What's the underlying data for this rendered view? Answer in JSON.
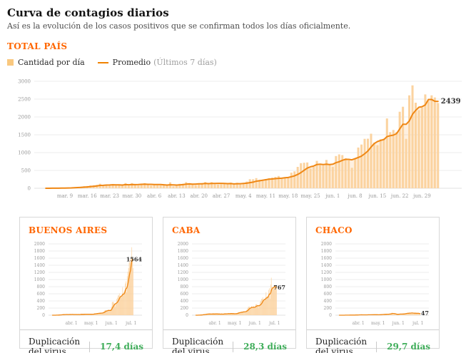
{
  "page": {
    "title": "Curva de contagios diarios",
    "subtitle": "Así es la evolución de los casos positivos que se confirman todos los días oficialmente."
  },
  "section": {
    "label": "TOTAL PAÍS"
  },
  "legend": {
    "bars_label": "Cantidad por día",
    "line_label": "Promedio",
    "line_note": "(Últimos 7 días)"
  },
  "colors": {
    "accent_orange": "#ff6600",
    "bar_fill": "#fbd3a0",
    "line_orange": "#ef8714",
    "area_fill": "rgba(246,160,60,0.16)",
    "grid": "#ececec",
    "axis_text": "#999999",
    "end_label": "#333333",
    "green": "#3fae5a"
  },
  "cards": [
    {
      "title": "BUENOS AIRES",
      "dup_label": "Duplicación del virus",
      "dup_value": "17,4 días"
    },
    {
      "title": "CABA",
      "dup_label": "Duplicación del virus",
      "dup_value": "28,3 días"
    },
    {
      "title": "CHACO",
      "dup_label": "Duplicación del virus",
      "dup_value": "29,7 días"
    }
  ],
  "chart_data": [
    {
      "type": "bar",
      "name": "total-pais",
      "overlay": "línea de promedio móvil de 7 días",
      "ylim": [
        0,
        3000
      ],
      "yticks": [
        0,
        500,
        1000,
        1500,
        2000,
        2500,
        3000
      ],
      "xticks": [
        {
          "label": "mar. 9",
          "i": 6
        },
        {
          "label": "mar. 16",
          "i": 13
        },
        {
          "label": "mar. 23",
          "i": 20
        },
        {
          "label": "mar. 30",
          "i": 27
        },
        {
          "label": "abr. 6",
          "i": 34
        },
        {
          "label": "abr. 13",
          "i": 41
        },
        {
          "label": "abr. 20",
          "i": 48
        },
        {
          "label": "abr. 27",
          "i": 55
        },
        {
          "label": "may. 4",
          "i": 62
        },
        {
          "label": "may. 11",
          "i": 69
        },
        {
          "label": "may. 18",
          "i": 76
        },
        {
          "label": "may. 25",
          "i": 83
        },
        {
          "label": "jun. 1",
          "i": 90
        },
        {
          "label": "jun. 8",
          "i": 97
        },
        {
          "label": "jun. 15",
          "i": 104
        },
        {
          "label": "jun. 22",
          "i": 111
        },
        {
          "label": "jun. 29",
          "i": 118
        }
      ],
      "end_label": "2439",
      "values": [
        1,
        1,
        2,
        2,
        8,
        9,
        12,
        19,
        21,
        31,
        34,
        45,
        56,
        65,
        79,
        87,
        97,
        128,
        67,
        102,
        86,
        117,
        74,
        87,
        101,
        146,
        75,
        146,
        88,
        79,
        132,
        145,
        103,
        74,
        103,
        87,
        80,
        98,
        81,
        167,
        53,
        69,
        124,
        128,
        172,
        143,
        102,
        87,
        113,
        144,
        173,
        147,
        172,
        111,
        105,
        111,
        124,
        143,
        158,
        104,
        154,
        103,
        146,
        188,
        255,
        251,
        284,
        240,
        206,
        258,
        285,
        300,
        318,
        345,
        263,
        299,
        303,
        438,
        474,
        600,
        704,
        717,
        723,
        552,
        600,
        769,
        649,
        637,
        795,
        667,
        602,
        904,
        949,
        931,
        840,
        783,
        574,
        826,
        1141,
        1226,
        1386,
        1391,
        1531,
        1282,
        1208,
        1374,
        1393,
        1958,
        1575,
        1634,
        1581,
        2146,
        2285,
        1386,
        2606,
        2886,
        2401,
        2189,
        2262,
        2632,
        2449,
        2606,
        2545,
        2390
      ]
    },
    {
      "type": "bar",
      "name": "buenos-aires",
      "overlay": "línea de promedio móvil de 7 días",
      "ylim": [
        0,
        2000
      ],
      "yticks": [
        0,
        200,
        400,
        600,
        800,
        1000,
        1200,
        1400,
        1600,
        1800,
        2000
      ],
      "xticks": [
        {
          "label": "abr. 1",
          "i": 29
        },
        {
          "label": "may. 1",
          "i": 59
        },
        {
          "label": "jun. 1",
          "i": 90
        },
        {
          "label": "jul. 1",
          "i": 120
        }
      ],
      "end_label": "1564",
      "values": [
        0,
        0,
        1,
        1,
        2,
        2,
        3,
        4,
        5,
        8,
        9,
        11,
        12,
        14,
        16,
        18,
        20,
        24,
        15,
        20,
        18,
        22,
        16,
        19,
        21,
        28,
        16,
        26,
        18,
        17,
        24,
        26,
        20,
        15,
        20,
        18,
        17,
        21,
        18,
        30,
        12,
        15,
        26,
        28,
        35,
        30,
        22,
        19,
        24,
        30,
        36,
        31,
        36,
        24,
        22,
        24,
        27,
        31,
        34,
        23,
        33,
        22,
        31,
        40,
        52,
        50,
        56,
        48,
        42,
        52,
        57,
        60,
        64,
        69,
        53,
        60,
        61,
        88,
        95,
        120,
        141,
        143,
        145,
        110,
        120,
        154,
        130,
        127,
        159,
        133,
        240,
        362,
        380,
        372,
        336,
        314,
        230,
        330,
        456,
        490,
        554,
        556,
        612,
        512,
        483,
        550,
        557,
        783,
        630,
        654,
        700,
        890,
        950,
        640,
        1090,
        1220,
        1320,
        1480,
        1560,
        1490,
        1640,
        1905,
        1553,
        1320
      ]
    },
    {
      "type": "bar",
      "name": "caba",
      "overlay": "línea de promedio móvil de 7 días",
      "ylim": [
        0,
        2000
      ],
      "yticks": [
        0,
        200,
        400,
        600,
        800,
        1000,
        1200,
        1400,
        1600,
        1800,
        2000
      ],
      "xticks": [
        {
          "label": "abr. 1",
          "i": 29
        },
        {
          "label": "may. 1",
          "i": 59
        },
        {
          "label": "jun. 1",
          "i": 90
        },
        {
          "label": "jul. 1",
          "i": 120
        }
      ],
      "end_label": "767",
      "values": [
        1,
        1,
        1,
        1,
        4,
        5,
        6,
        9,
        10,
        14,
        15,
        19,
        23,
        26,
        30,
        33,
        36,
        45,
        24,
        35,
        30,
        40,
        26,
        30,
        34,
        48,
        25,
        48,
        30,
        27,
        44,
        48,
        34,
        25,
        34,
        29,
        27,
        33,
        27,
        55,
        18,
        23,
        41,
        42,
        57,
        47,
        34,
        29,
        37,
        48,
        57,
        49,
        57,
        37,
        35,
        37,
        41,
        47,
        52,
        35,
        51,
        34,
        48,
        62,
        84,
        83,
        94,
        79,
        68,
        85,
        94,
        99,
        105,
        114,
        87,
        99,
        100,
        145,
        156,
        198,
        232,
        237,
        239,
        182,
        198,
        254,
        214,
        210,
        262,
        220,
        199,
        298,
        313,
        307,
        277,
        258,
        189,
        273,
        377,
        405,
        458,
        459,
        505,
        423,
        399,
        453,
        460,
        646,
        520,
        539,
        522,
        708,
        754,
        458,
        860,
        1052,
        792,
        722,
        746,
        800,
        742,
        820,
        800,
        739
      ]
    },
    {
      "type": "bar",
      "name": "chaco",
      "overlay": "línea de promedio móvil de 7 días",
      "ylim": [
        0,
        2000
      ],
      "yticks": [
        0,
        200,
        400,
        600,
        800,
        1000,
        1200,
        1400,
        1600,
        1800,
        2000
      ],
      "xticks": [
        {
          "label": "abr. 1",
          "i": 29
        },
        {
          "label": "may. 1",
          "i": 59
        },
        {
          "label": "jun. 1",
          "i": 90
        },
        {
          "label": "jul. 1",
          "i": 120
        }
      ],
      "end_label": "47",
      "values": [
        0,
        0,
        0,
        0,
        1,
        1,
        1,
        2,
        1,
        2,
        2,
        3,
        2,
        3,
        4,
        3,
        5,
        6,
        2,
        4,
        5,
        6,
        4,
        5,
        6,
        8,
        3,
        9,
        12,
        10,
        14,
        16,
        9,
        6,
        12,
        10,
        8,
        11,
        9,
        15,
        5,
        7,
        12,
        13,
        18,
        14,
        10,
        8,
        11,
        14,
        17,
        15,
        18,
        11,
        10,
        11,
        13,
        15,
        16,
        10,
        15,
        10,
        14,
        18,
        25,
        24,
        28,
        23,
        20,
        25,
        28,
        29,
        31,
        34,
        26,
        29,
        29,
        42,
        46,
        58,
        68,
        70,
        21,
        22,
        24,
        31,
        26,
        25,
        32,
        27,
        24,
        36,
        38,
        37,
        34,
        31,
        23,
        33,
        46,
        49,
        55,
        56,
        61,
        51,
        48,
        55,
        56,
        78,
        63,
        65,
        63,
        52,
        55,
        33,
        63,
        70,
        58,
        53,
        40,
        47,
        42,
        49,
        51,
        46
      ]
    }
  ]
}
